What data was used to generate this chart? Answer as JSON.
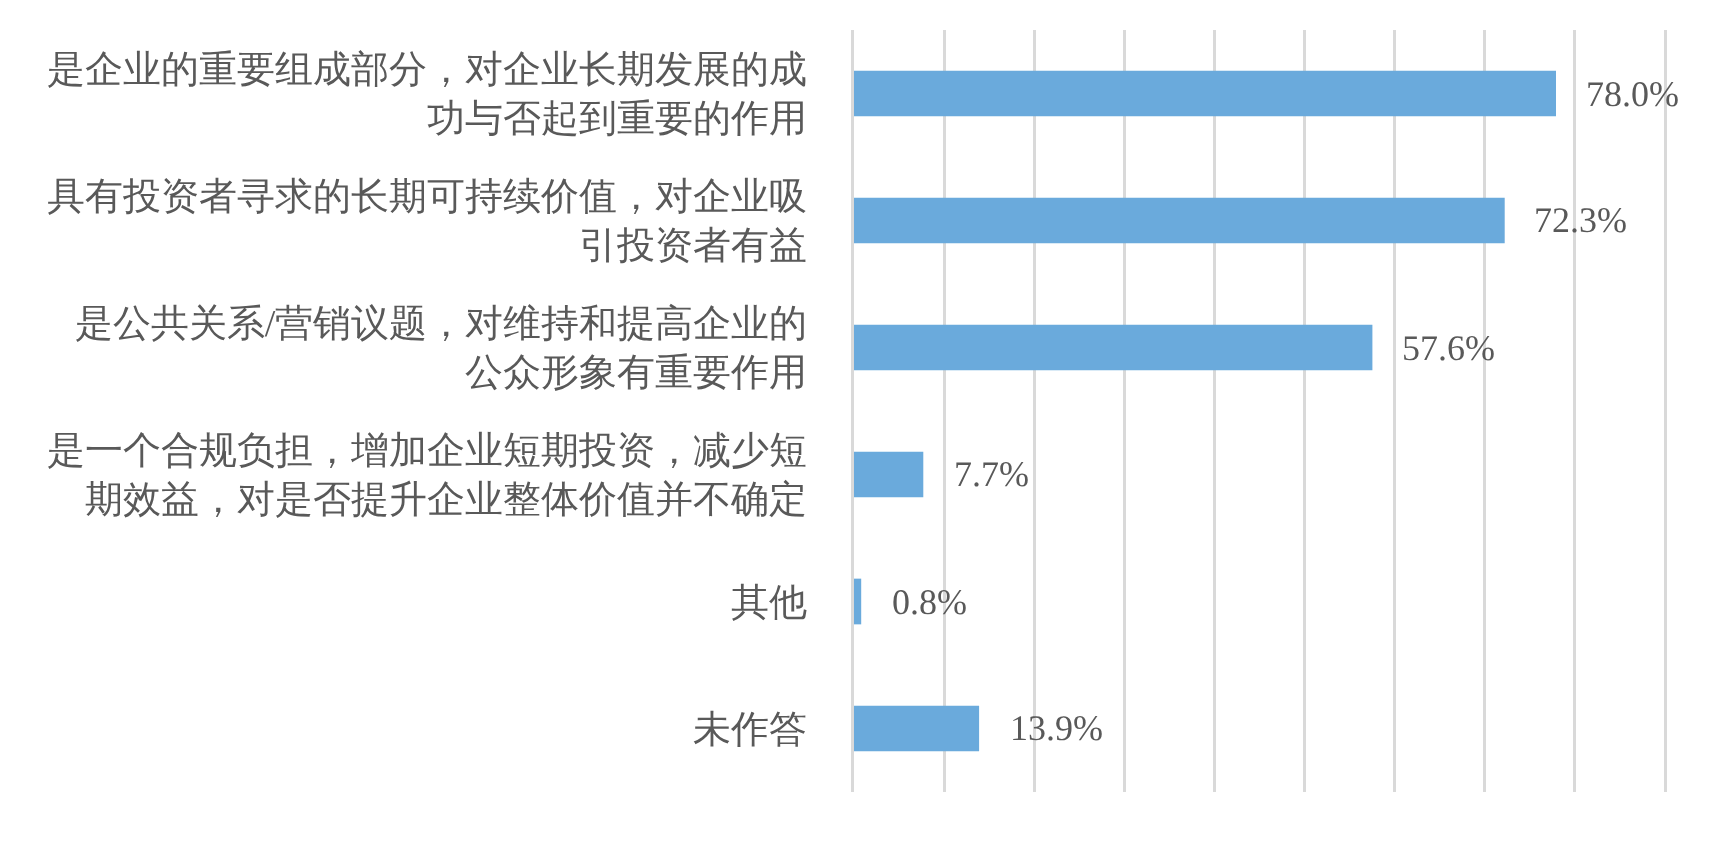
{
  "chart_data": {
    "type": "bar",
    "orientation": "horizontal",
    "categories": [
      "是企业的重要组成部分，对企业长期发展的成功与否起到重要的作用",
      "具有投资者寻求的长期可持续价值，对企业吸引投资者有益",
      "是公共关系/营销议题，对维持和提高企业的公众形象有重要作用",
      "是一个合规负担，增加企业短期投资，减少短期效益，对是否提升企业整体价值并不确定",
      "其他",
      "未作答"
    ],
    "values": [
      78.0,
      72.3,
      57.6,
      7.7,
      0.8,
      13.9
    ],
    "value_labels": [
      "78.0%",
      "72.3%",
      "57.6%",
      "7.7%",
      "0.8%",
      "13.9%"
    ],
    "color": "#6aaadc",
    "xlim": [
      0,
      90
    ],
    "xticks": [
      {
        "value": 10,
        "label": null
      },
      {
        "value": 20,
        "label": null
      },
      {
        "value": 30,
        "label": null
      },
      {
        "value": 40,
        "label": null
      },
      {
        "value": 50,
        "label": null
      },
      {
        "value": 60,
        "label": null
      },
      {
        "value": 70,
        "label": null
      },
      {
        "value": 80,
        "label": null
      }
    ],
    "grid": "x",
    "tick_labels": "y"
  }
}
